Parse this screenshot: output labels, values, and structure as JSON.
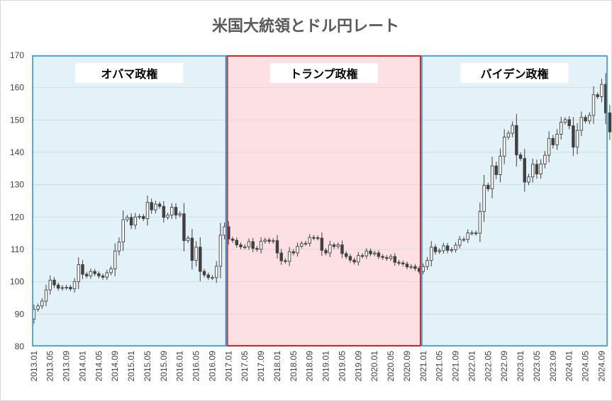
{
  "chart_data": {
    "type": "candlestick",
    "title": "米国大統領とドル円レート",
    "ylim": [
      80,
      170
    ],
    "yticks": [
      "80",
      "90",
      "100",
      "110",
      "120",
      "130",
      "140",
      "150",
      "160",
      "170"
    ],
    "xlabels": [
      "2013.01",
      "2013.05",
      "2013.09",
      "2014.01",
      "2014.05",
      "2014.09",
      "2015.01",
      "2015.05",
      "2015.09",
      "2016.01",
      "2016.05",
      "2016.09",
      "2017.01",
      "2017.05",
      "2017.09",
      "2018.01",
      "2018.05",
      "2018.09",
      "2019.01",
      "2019.05",
      "2019.09",
      "2020.01",
      "2020.05",
      "2020.09",
      "2021.01",
      "2021.05",
      "2021.09",
      "2022.01",
      "2022.05",
      "2022.09",
      "2023.01",
      "2023.05",
      "2023.09",
      "2024.01",
      "2024.05",
      "2024.09"
    ],
    "grid": true,
    "colors": {
      "up": "#ffffff",
      "down": "#404040",
      "wick": "#404040",
      "blue_band": "#e3f1f9",
      "blue_border": "#2e9bd6",
      "red_band": "#fde0e4",
      "red_border": "#d9262c"
    },
    "eras": [
      {
        "label": "オバマ政権",
        "start_month": 0,
        "end_month": 48,
        "color": "blue"
      },
      {
        "label": "トランプ政権",
        "start_month": 48,
        "end_month": 96,
        "color": "red"
      },
      {
        "label": "バイデン政権",
        "start_month": 96,
        "end_month": 142,
        "color": "blue"
      }
    ],
    "monthly_close": [
      91.5,
      92.5,
      94,
      97.5,
      100.5,
      99,
      98,
      98.2,
      98.3,
      97.8,
      100,
      105.3,
      102.3,
      101.8,
      103.2,
      102.5,
      101.8,
      101.4,
      102.8,
      104,
      109.5,
      112.3,
      119.2,
      119.9,
      117.5,
      120,
      120.2,
      119.5,
      124.5,
      122.2,
      124,
      123.3,
      119.9,
      120.6,
      123,
      120.6,
      121,
      112.7,
      113.5,
      106.6,
      110.7,
      103.2,
      102.1,
      101.3,
      101.3,
      104.8,
      114.4,
      117.0,
      113.2,
      112.8,
      111.4,
      110.8,
      110.8,
      112.4,
      110.3,
      110,
      112.5,
      112.9,
      112.5,
      112.7,
      108.9,
      106.5,
      106.3,
      109.3,
      108.9,
      111,
      111.8,
      111.9,
      113.7,
      113.6,
      113.5,
      109.7,
      108.9,
      111.4,
      110.9,
      111.4,
      108.7,
      107.8,
      106.7,
      106.1,
      108.1,
      108,
      109.5,
      108.6,
      108.9,
      107.8,
      107.5,
      107.2,
      107.8,
      106,
      105.8,
      105.5,
      104.6,
      104.7,
      104.1,
      103.2,
      104.7,
      106.6,
      110.7,
      109.3,
      109.6,
      111.1,
      109.7,
      109.9,
      111.3,
      113.1,
      113.1,
      115.1,
      115.1,
      115,
      121.7,
      129.8,
      128.7,
      135.8,
      133.1,
      138.8,
      144.7,
      145.9,
      148.3,
      139.2,
      138.1,
      130.8,
      132.4,
      136.3,
      133.3,
      136.4,
      139.1,
      144.3,
      142.3,
      145.6,
      149.3,
      150.1,
      148.2,
      141.6,
      146.8,
      150.8,
      149.7,
      151.4,
      157.8,
      157.2,
      161.0,
      152.2,
      146.3,
      143.6
    ]
  }
}
